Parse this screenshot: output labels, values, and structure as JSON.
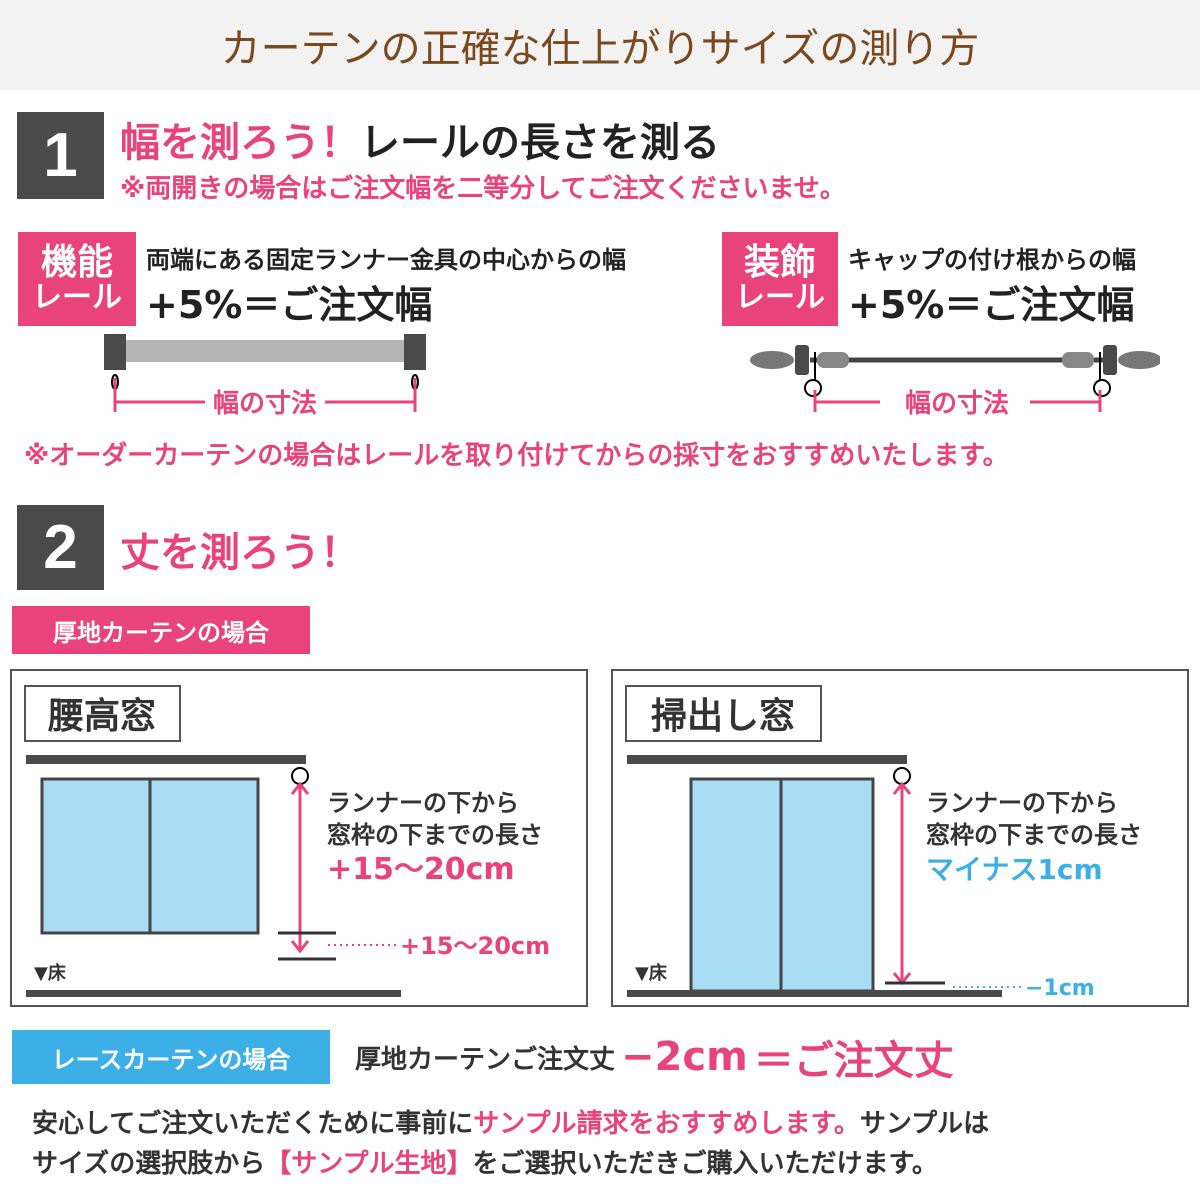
{
  "title": "カーテンの正確な仕上がりサイズの測り方",
  "step1": {
    "number": "1",
    "heading_pink": "幅を測ろう！",
    "heading_black": "レールの長さを測る",
    "note": "※両開きの場合はご注文幅を二等分してご注文くださいませ。",
    "functional": {
      "badge_line1": "機能",
      "badge_line2": "レール",
      "desc": "両端にある固定ランナー金具の中心からの幅",
      "formula": "+5%＝ご注文幅",
      "dimension_label": "幅の寸法"
    },
    "decorative": {
      "badge_line1": "装飾",
      "badge_line2": "レール",
      "desc": "キャップの付け根からの幅",
      "formula": "+5%＝ご注文幅",
      "dimension_label": "幅の寸法"
    },
    "order_note": "※オーダーカーテンの場合はレールを取り付けてからの採寸をおすすめいたします。"
  },
  "step2": {
    "number": "2",
    "heading": "丈を測ろう！",
    "thick_label": "厚地カーテンの場合",
    "waist_window": {
      "title": "腰高窓",
      "line1": "ランナーの下から",
      "line2": "窓枠の下までの長さ",
      "value": "+15～20cm",
      "side_value": "+15～20cm",
      "floor": "▼床"
    },
    "floor_window": {
      "title": "掃出し窓",
      "line1": "ランナーの下から",
      "line2": "窓枠の下までの長さ",
      "value": "マイナス1cm",
      "side_value": "−1cm",
      "floor": "▼床"
    },
    "lace_label": "レースカーテンの場合",
    "lace_text": "厚地カーテンご注文丈",
    "lace_minus": "−2cm",
    "lace_result": "＝ご注文丈"
  },
  "footer": {
    "line1_a": "安心してご注文いただくために事前に",
    "line1_b": "サンプル請求をおすすめします。",
    "line1_c": "サンプルは",
    "line2_a": "サイズの選択肢から",
    "line2_b": "【サンプル生地】",
    "line2_c": "をご選択いただきご購入いただけます。"
  },
  "colors": {
    "pink": "#e8437a",
    "blue": "#3cb0e6",
    "brown": "#7a4a1e",
    "window": "#a8dcf4",
    "dark": "#4a4a4a"
  }
}
